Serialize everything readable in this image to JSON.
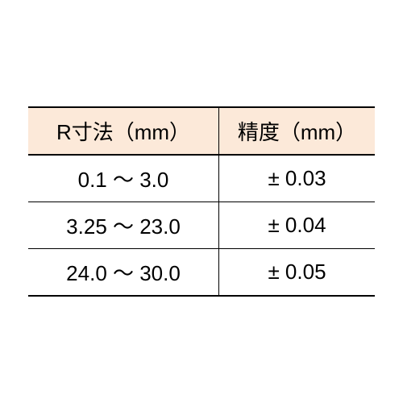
{
  "table": {
    "type": "table",
    "background_color": "#ffffff",
    "header_background_color": "#fce9d9",
    "border_color": "#000000",
    "text_color": "#000000",
    "font_size": 26,
    "columns": [
      {
        "label": "R寸法（mm）",
        "width_percent": 55,
        "alignment": "center"
      },
      {
        "label": "精度（mm）",
        "width_percent": 45,
        "alignment": "center"
      }
    ],
    "rows": [
      {
        "range": "0.1 ～ 3.0",
        "tolerance": "± 0.03"
      },
      {
        "range": "3.25 ～ 23.0",
        "tolerance": "± 0.04"
      },
      {
        "range": "24.0 ～ 30.0",
        "tolerance": "± 0.05"
      }
    ]
  }
}
